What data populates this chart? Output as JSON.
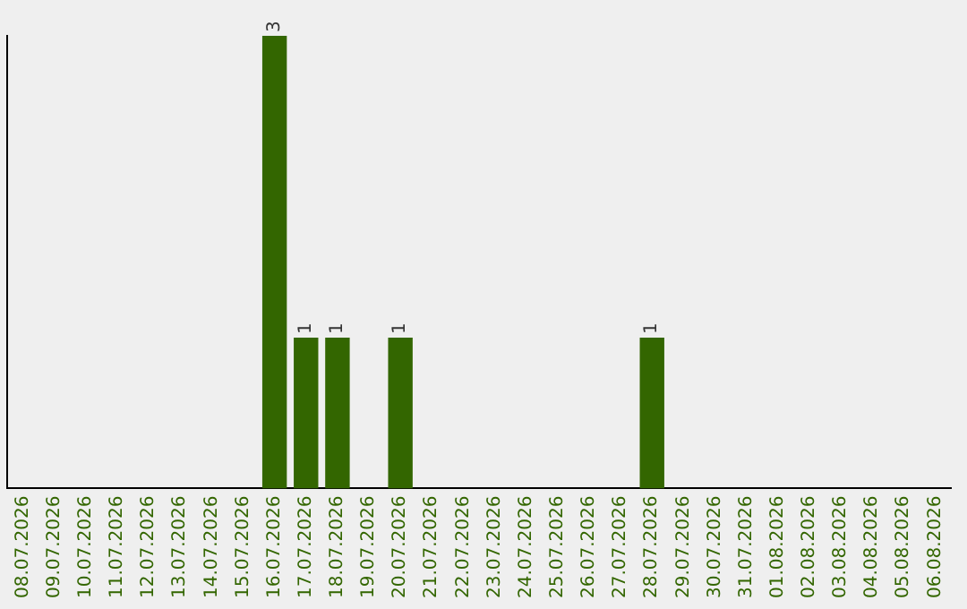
{
  "chart_data": {
    "type": "bar",
    "categories": [
      "08.07.2026",
      "09.07.2026",
      "10.07.2026",
      "11.07.2026",
      "12.07.2026",
      "13.07.2026",
      "14.07.2026",
      "15.07.2026",
      "16.07.2026",
      "17.07.2026",
      "18.07.2026",
      "19.07.2026",
      "20.07.2026",
      "21.07.2026",
      "22.07.2026",
      "23.07.2026",
      "24.07.2026",
      "25.07.2026",
      "26.07.2026",
      "27.07.2026",
      "28.07.2026",
      "29.07.2026",
      "30.07.2026",
      "31.07.2026",
      "01.08.2026",
      "02.08.2026",
      "03.08.2026",
      "04.08.2026",
      "05.08.2026",
      "06.08.2026"
    ],
    "values": [
      0,
      0,
      0,
      0,
      0,
      0,
      0,
      0,
      3,
      1,
      1,
      0,
      1,
      0,
      0,
      0,
      0,
      0,
      0,
      0,
      1,
      0,
      0,
      0,
      0,
      0,
      0,
      0,
      0,
      0
    ],
    "value_labels": [
      null,
      null,
      null,
      null,
      null,
      null,
      null,
      null,
      "3",
      "1",
      "1",
      null,
      "1",
      null,
      null,
      null,
      null,
      null,
      null,
      null,
      "1",
      null,
      null,
      null,
      null,
      null,
      null,
      null,
      null,
      null
    ],
    "color": "#336600",
    "ylim": [
      0,
      3
    ],
    "tick_labels": "x",
    "grid": false,
    "legend": false
  }
}
